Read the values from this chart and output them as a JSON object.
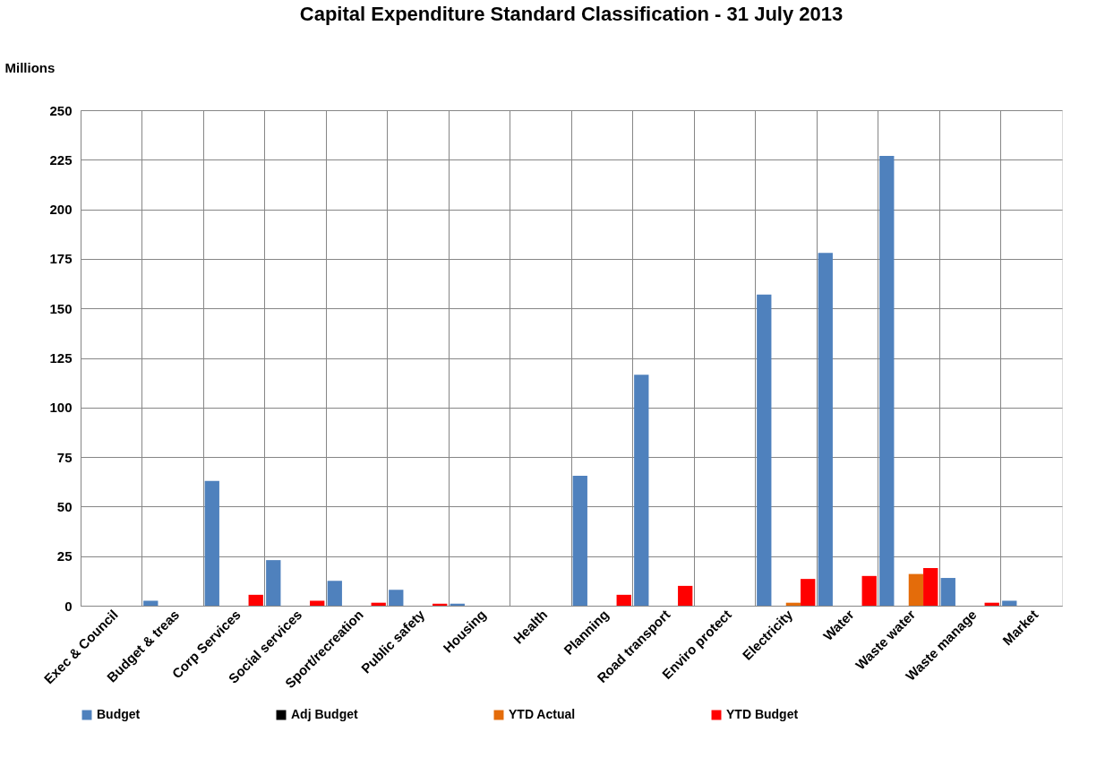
{
  "chart_data": {
    "type": "bar",
    "title": "Capital Expenditure Standard Classification  - 31 July 2013",
    "ylabel": "Millions",
    "categories": [
      "Exec & Council",
      "Budget & treas",
      "Corp Services",
      "Social services",
      "Sport/recreation",
      "Public safety",
      "Housing",
      "Health",
      "Planning",
      "Road transport",
      "Enviro protect",
      "Electricity",
      "Water",
      "Waste water",
      "Waste manage",
      "Market"
    ],
    "series": [
      {
        "name": "Budget",
        "color": "#4f81bd",
        "values": [
          0,
          2.5,
          63,
          23,
          12.5,
          8,
          1,
          0,
          65.5,
          116.5,
          0,
          157,
          178,
          227,
          14,
          2.5
        ]
      },
      {
        "name": "Adj Budget",
        "color": "#000000",
        "values": [
          0,
          0,
          0,
          0,
          0,
          0,
          0,
          0,
          0,
          0,
          0,
          0,
          0,
          0,
          0,
          0
        ]
      },
      {
        "name": "YTD Actual",
        "color": "#e46c0a",
        "values": [
          0,
          0,
          0,
          0,
          0,
          0,
          0,
          0,
          0,
          0,
          0,
          1.5,
          0,
          16,
          0,
          0
        ]
      },
      {
        "name": "YTD Budget",
        "color": "#ff0000",
        "values": [
          0,
          0,
          5.5,
          2.5,
          1.5,
          1,
          0,
          0,
          5.5,
          10,
          0,
          13.5,
          15,
          19,
          1.5,
          0
        ]
      }
    ],
    "ylim": [
      0,
      250
    ],
    "yticks": [
      0,
      25,
      50,
      75,
      100,
      125,
      150,
      175,
      200,
      225,
      250
    ],
    "grid": true,
    "legend": "bottom"
  }
}
